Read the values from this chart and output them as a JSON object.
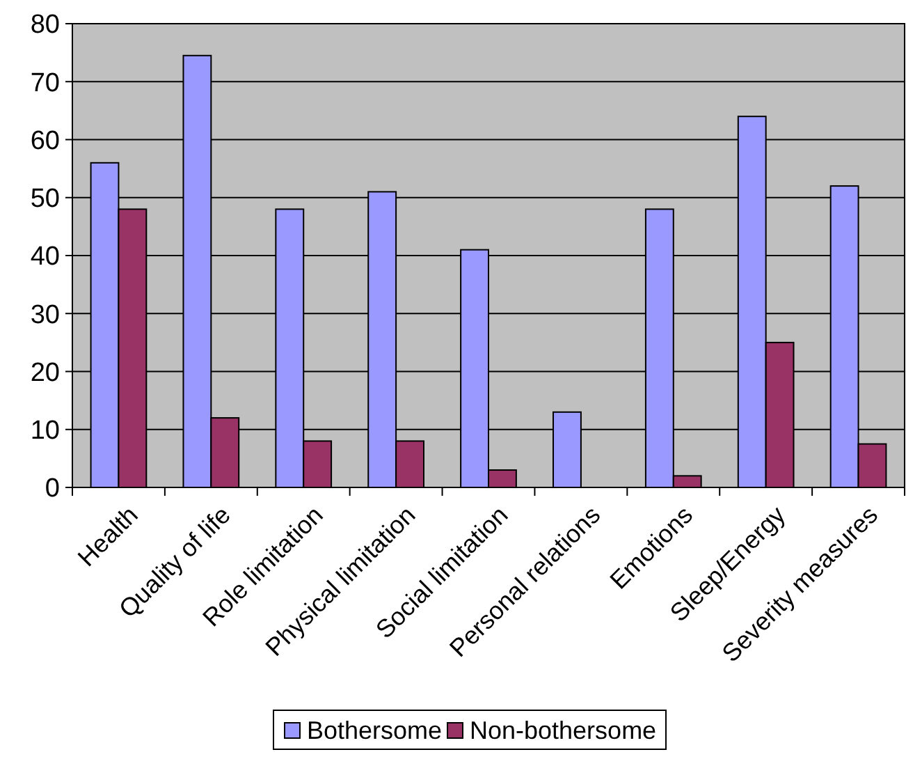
{
  "chart_data": {
    "type": "bar",
    "categories": [
      "Health",
      "Quality of life",
      "Role limitation",
      "Physical limitation",
      "Social limitation",
      "Personal relations",
      "Emotions",
      "Sleep/Energy",
      "Severity measures"
    ],
    "series": [
      {
        "name": "Bothersome",
        "color": "#9999ff",
        "values": [
          56,
          74.5,
          48,
          51,
          41,
          13,
          48,
          64,
          52
        ]
      },
      {
        "name": "Non-bothersome",
        "color": "#993366",
        "values": [
          48,
          12,
          8,
          8,
          3,
          0,
          2,
          25,
          7.5
        ]
      }
    ],
    "ylim": [
      0,
      80
    ],
    "yticks": [
      0,
      10,
      20,
      30,
      40,
      50,
      60,
      70,
      80
    ],
    "grid": "y",
    "legend": "bottom"
  }
}
